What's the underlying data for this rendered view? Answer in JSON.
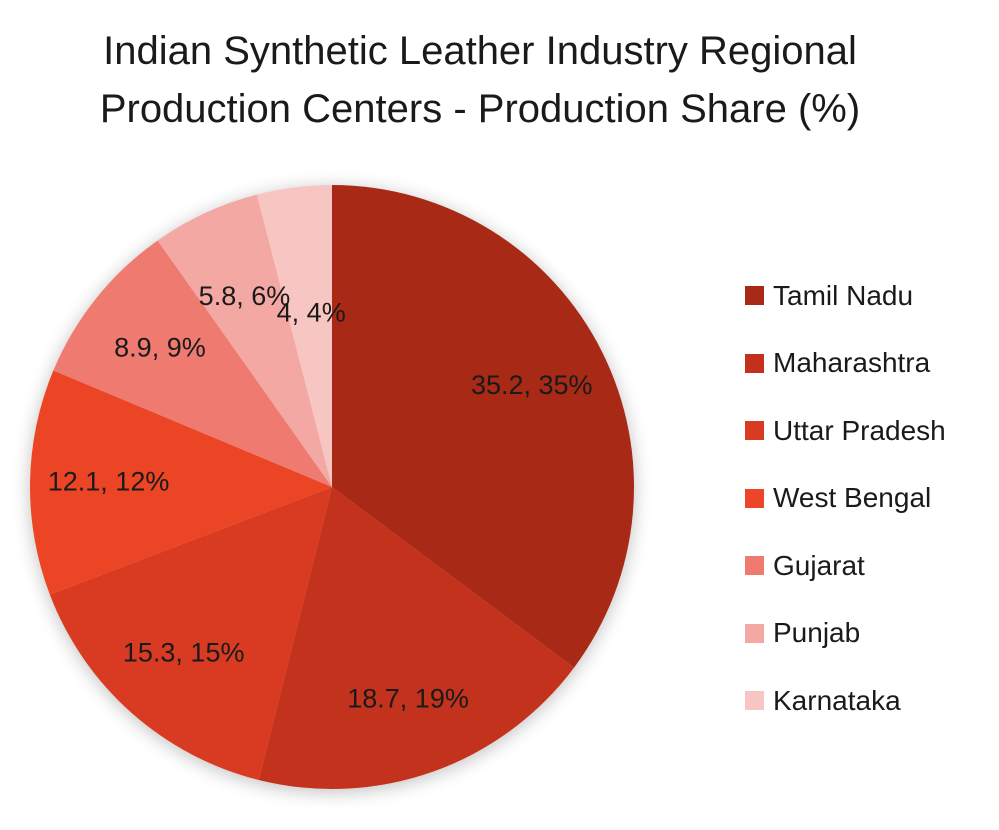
{
  "chart_data": {
    "type": "pie",
    "title_lines": [
      "Indian Synthetic Leather Industry Regional",
      "Production Centers - Production Share (%)"
    ],
    "categories": [
      "Tamil Nadu",
      "Maharashtra",
      "Uttar Pradesh",
      "West Bengal",
      "Gujarat",
      "Punjab",
      "Karnataka"
    ],
    "values": [
      35.2,
      18.7,
      15.3,
      12.1,
      8.9,
      5.8,
      4
    ],
    "labels": [
      "35.2, 35%",
      "18.7, 19%",
      "15.3, 15%",
      "12.1, 12%",
      "8.9, 9%",
      "5.8, 6%",
      "4, 4%"
    ],
    "colors": [
      "#a82a16",
      "#c3301b",
      "#d93a22",
      "#ec4527",
      "#ef7a70",
      "#f4a8a4",
      "#f7c6c3"
    ],
    "legend_position": "right"
  }
}
